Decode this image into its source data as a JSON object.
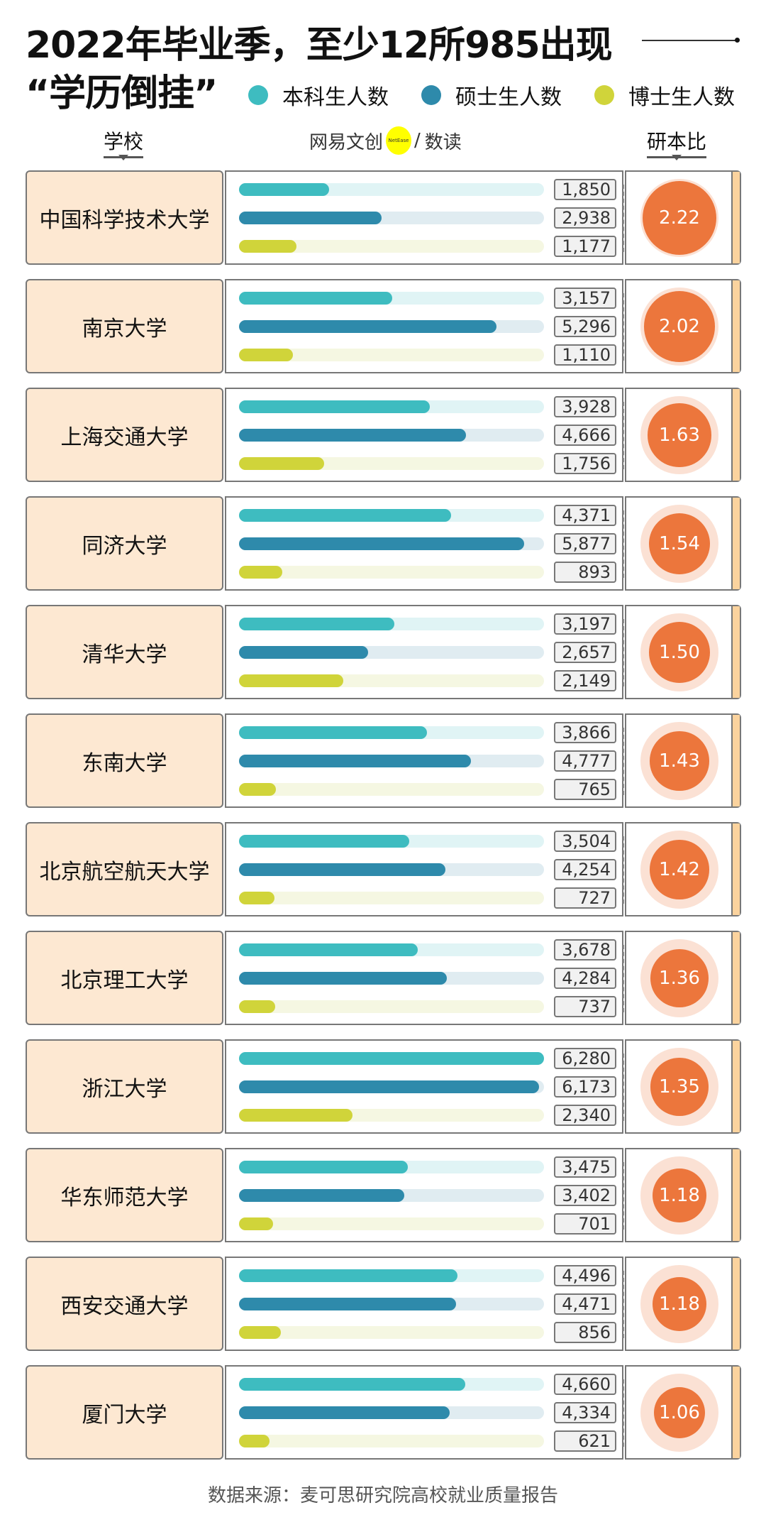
{
  "title_line1": "2022年毕业季，至少12所985出现",
  "title_line2": "“学历倒挂”",
  "legend": [
    {
      "label": "本科生人数",
      "color": "#3ebcc0"
    },
    {
      "label": "硕士生人数",
      "color": "#2e8aab"
    },
    {
      "label": "博士生人数",
      "color": "#d0d43a"
    }
  ],
  "headers": {
    "school": "学校",
    "ratio": "研本比",
    "brand": "网易文创",
    "brand_badge": "NetEase",
    "brand_sep": "/",
    "brand_sub": "数读"
  },
  "footer": "数据来源：麦可思研究院高校就业质量报告",
  "chart_data": {
    "type": "bar",
    "title": "2022年毕业季，至少12所985出现“学历倒挂”",
    "series_names": [
      "本科生人数",
      "硕士生人数",
      "博士生人数"
    ],
    "max": 6280,
    "rows": [
      {
        "school": "中国科学技术大学",
        "values": [
          1850,
          2938,
          1177
        ],
        "labels": [
          "1,850",
          "2,938",
          "1,177"
        ],
        "ratio": "2.22"
      },
      {
        "school": "南京大学",
        "values": [
          3157,
          5296,
          1110
        ],
        "labels": [
          "3,157",
          "5,296",
          "1,110"
        ],
        "ratio": "2.02"
      },
      {
        "school": "上海交通大学",
        "values": [
          3928,
          4666,
          1756
        ],
        "labels": [
          "3,928",
          "4,666",
          "1,756"
        ],
        "ratio": "1.63"
      },
      {
        "school": "同济大学",
        "values": [
          4371,
          5877,
          893
        ],
        "labels": [
          "4,371",
          "5,877",
          "893"
        ],
        "ratio": "1.54"
      },
      {
        "school": "清华大学",
        "values": [
          3197,
          2657,
          2149
        ],
        "labels": [
          "3,197",
          "2,657",
          "2,149"
        ],
        "ratio": "1.50"
      },
      {
        "school": "东南大学",
        "values": [
          3866,
          4777,
          765
        ],
        "labels": [
          "3,866",
          "4,777",
          "765"
        ],
        "ratio": "1.43"
      },
      {
        "school": "北京航空航天大学",
        "values": [
          3504,
          4254,
          727
        ],
        "labels": [
          "3,504",
          "4,254",
          "727"
        ],
        "ratio": "1.42"
      },
      {
        "school": "北京理工大学",
        "values": [
          3678,
          4284,
          737
        ],
        "labels": [
          "3,678",
          "4,284",
          "737"
        ],
        "ratio": "1.36"
      },
      {
        "school": "浙江大学",
        "values": [
          6280,
          6173,
          2340
        ],
        "labels": [
          "6,280",
          "6,173",
          "2,340"
        ],
        "ratio": "1.35"
      },
      {
        "school": "华东师范大学",
        "values": [
          3475,
          3402,
          701
        ],
        "labels": [
          "3,475",
          "3,402",
          "701"
        ],
        "ratio": "1.18"
      },
      {
        "school": "西安交通大学",
        "values": [
          4496,
          4471,
          856
        ],
        "labels": [
          "4,496",
          "4,471",
          "856"
        ],
        "ratio": "1.18"
      },
      {
        "school": "厦门大学",
        "values": [
          4660,
          4334,
          621
        ],
        "labels": [
          "4,660",
          "4,334",
          "621"
        ],
        "ratio": "1.06"
      }
    ]
  }
}
